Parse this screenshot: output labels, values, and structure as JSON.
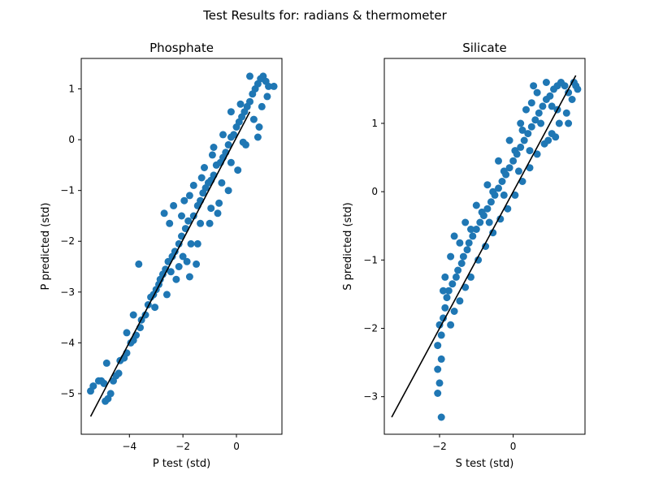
{
  "suptitle": "Test Results for: radians & thermometer",
  "chart_data": [
    {
      "type": "scatter",
      "title": "Phosphate",
      "xlabel": "P test (std)",
      "ylabel": "P predicted (std)",
      "xlim": [
        -5.8,
        1.7
      ],
      "ylim": [
        -5.8,
        1.6
      ],
      "xticks": [
        -4,
        -2,
        0
      ],
      "yticks": [
        -5,
        -4,
        -3,
        -2,
        -1,
        0,
        1
      ],
      "grid": false,
      "marker_color": "#1f77b4",
      "line_color": "#000000",
      "reference_line": {
        "x": [
          -5.45,
          0.5
        ],
        "y": [
          -5.45,
          0.55
        ]
      },
      "points": [
        [
          -5.45,
          -4.95
        ],
        [
          -5.35,
          -4.85
        ],
        [
          -5.15,
          -4.75
        ],
        [
          -5.05,
          -4.75
        ],
        [
          -4.95,
          -4.8
        ],
        [
          -4.9,
          -5.15
        ],
        [
          -4.85,
          -4.4
        ],
        [
          -4.8,
          -5.1
        ],
        [
          -4.7,
          -5.0
        ],
        [
          -4.6,
          -4.75
        ],
        [
          -4.5,
          -4.65
        ],
        [
          -4.4,
          -4.6
        ],
        [
          -4.35,
          -4.35
        ],
        [
          -4.2,
          -4.3
        ],
        [
          -4.1,
          -4.2
        ],
        [
          -3.95,
          -4.0
        ],
        [
          -3.85,
          -3.95
        ],
        [
          -3.75,
          -3.85
        ],
        [
          -3.6,
          -3.7
        ],
        [
          -3.65,
          -2.45
        ],
        [
          -3.55,
          -3.55
        ],
        [
          -3.4,
          -3.45
        ],
        [
          -3.3,
          -3.25
        ],
        [
          -3.2,
          -3.1
        ],
        [
          -3.1,
          -3.05
        ],
        [
          -3.0,
          -2.95
        ],
        [
          -2.9,
          -2.85
        ],
        [
          -2.75,
          -2.65
        ],
        [
          -2.65,
          -2.55
        ],
        [
          -2.55,
          -2.4
        ],
        [
          -2.5,
          -1.65
        ],
        [
          -2.4,
          -2.3
        ],
        [
          -2.3,
          -2.2
        ],
        [
          -2.15,
          -2.05
        ],
        [
          -2.05,
          -1.9
        ],
        [
          -2.0,
          -2.3
        ],
        [
          -1.9,
          -1.75
        ],
        [
          -1.8,
          -1.6
        ],
        [
          -1.75,
          -2.7
        ],
        [
          -1.6,
          -1.5
        ],
        [
          -1.5,
          -2.45
        ],
        [
          -1.45,
          -1.3
        ],
        [
          -1.35,
          -1.2
        ],
        [
          -1.25,
          -1.05
        ],
        [
          -1.15,
          -0.95
        ],
        [
          -1.05,
          -0.85
        ],
        [
          -0.95,
          -0.8
        ],
        [
          -0.85,
          -0.7
        ],
        [
          -0.75,
          -0.5
        ],
        [
          -0.7,
          -1.45
        ],
        [
          -0.6,
          -0.45
        ],
        [
          -0.5,
          -0.35
        ],
        [
          -0.4,
          -0.25
        ],
        [
          -0.3,
          -0.1
        ],
        [
          -0.2,
          0.05
        ],
        [
          -0.1,
          0.1
        ],
        [
          0.0,
          0.25
        ],
        [
          0.1,
          0.35
        ],
        [
          0.2,
          0.45
        ],
        [
          0.3,
          0.55
        ],
        [
          0.4,
          0.65
        ],
        [
          0.5,
          0.75
        ],
        [
          0.6,
          0.9
        ],
        [
          0.7,
          1.0
        ],
        [
          0.8,
          1.1
        ],
        [
          0.9,
          1.2
        ],
        [
          1.0,
          1.25
        ],
        [
          1.1,
          1.15
        ],
        [
          1.2,
          1.05
        ],
        [
          1.4,
          1.05
        ],
        [
          -2.7,
          -1.45
        ],
        [
          -2.35,
          -1.3
        ],
        [
          -1.95,
          -1.2
        ],
        [
          -1.6,
          -0.9
        ],
        [
          -1.2,
          -0.55
        ],
        [
          -0.9,
          -0.3
        ],
        [
          -0.5,
          0.1
        ],
        [
          -0.2,
          0.55
        ],
        [
          0.15,
          0.7
        ],
        [
          0.5,
          1.25
        ],
        [
          -2.6,
          -3.05
        ],
        [
          -2.25,
          -2.75
        ],
        [
          -1.85,
          -2.4
        ],
        [
          -1.45,
          -2.05
        ],
        [
          -1.0,
          -1.65
        ],
        [
          -0.65,
          -1.25
        ],
        [
          -0.3,
          -1.0
        ],
        [
          0.05,
          -0.6
        ],
        [
          0.35,
          -0.1
        ],
        [
          0.8,
          0.05
        ],
        [
          -3.05,
          -3.3
        ],
        [
          -2.85,
          -2.75
        ],
        [
          -2.45,
          -2.6
        ],
        [
          -2.15,
          -2.5
        ],
        [
          -1.7,
          -2.05
        ],
        [
          -1.35,
          -1.65
        ],
        [
          -0.95,
          -1.35
        ],
        [
          -0.55,
          -0.85
        ],
        [
          -0.2,
          -0.45
        ],
        [
          0.25,
          -0.05
        ],
        [
          0.65,
          0.4
        ],
        [
          0.95,
          0.65
        ],
        [
          1.15,
          0.85
        ],
        [
          0.85,
          0.25
        ],
        [
          -0.85,
          -0.15
        ],
        [
          -1.3,
          -0.75
        ],
        [
          -1.75,
          -1.1
        ],
        [
          -2.05,
          -1.5
        ],
        [
          -3.85,
          -3.45
        ],
        [
          -4.1,
          -3.8
        ]
      ]
    },
    {
      "type": "scatter",
      "title": "Silicate",
      "xlabel": "S test (std)",
      "ylabel": "S predicted (std)",
      "xlim": [
        -3.5,
        1.95
      ],
      "ylim": [
        -3.55,
        1.95
      ],
      "xticks": [
        -2,
        0
      ],
      "yticks": [
        -3,
        -2,
        -1,
        0,
        1
      ],
      "grid": false,
      "marker_color": "#1f77b4",
      "line_color": "#000000",
      "reference_line": {
        "x": [
          -3.3,
          1.7
        ],
        "y": [
          -3.3,
          1.7
        ]
      },
      "points": [
        [
          -1.95,
          -3.3
        ],
        [
          -2.05,
          -2.95
        ],
        [
          -2.0,
          -2.8
        ],
        [
          -2.05,
          -2.6
        ],
        [
          -1.95,
          -2.45
        ],
        [
          -2.05,
          -2.25
        ],
        [
          -1.95,
          -2.1
        ],
        [
          -2.0,
          -1.95
        ],
        [
          -1.9,
          -1.85
        ],
        [
          -1.85,
          -1.7
        ],
        [
          -1.8,
          -1.55
        ],
        [
          -1.75,
          -1.45
        ],
        [
          -1.7,
          -1.95
        ],
        [
          -1.65,
          -1.35
        ],
        [
          -1.6,
          -1.75
        ],
        [
          -1.55,
          -1.25
        ],
        [
          -1.5,
          -1.15
        ],
        [
          -1.45,
          -1.6
        ],
        [
          -1.4,
          -1.05
        ],
        [
          -1.35,
          -0.95
        ],
        [
          -1.3,
          -1.4
        ],
        [
          -1.25,
          -0.85
        ],
        [
          -1.2,
          -0.75
        ],
        [
          -1.15,
          -1.25
        ],
        [
          -1.1,
          -0.65
        ],
        [
          -1.0,
          -0.55
        ],
        [
          -0.95,
          -1.0
        ],
        [
          -0.9,
          -0.45
        ],
        [
          -0.8,
          -0.35
        ],
        [
          -0.75,
          -0.8
        ],
        [
          -0.7,
          -0.25
        ],
        [
          -0.6,
          -0.15
        ],
        [
          -0.55,
          -0.6
        ],
        [
          -0.5,
          -0.05
        ],
        [
          -0.4,
          0.05
        ],
        [
          -0.35,
          -0.4
        ],
        [
          -0.3,
          0.15
        ],
        [
          -0.2,
          0.25
        ],
        [
          -0.15,
          -0.25
        ],
        [
          -0.1,
          0.35
        ],
        [
          0.0,
          0.45
        ],
        [
          0.05,
          -0.05
        ],
        [
          0.1,
          0.55
        ],
        [
          0.2,
          0.65
        ],
        [
          0.25,
          0.15
        ],
        [
          0.3,
          0.75
        ],
        [
          0.4,
          0.85
        ],
        [
          0.45,
          0.35
        ],
        [
          0.5,
          0.95
        ],
        [
          0.6,
          1.05
        ],
        [
          0.65,
          0.55
        ],
        [
          0.7,
          1.15
        ],
        [
          0.8,
          1.25
        ],
        [
          0.85,
          0.7
        ],
        [
          0.9,
          1.35
        ],
        [
          1.0,
          1.4
        ],
        [
          1.05,
          0.85
        ],
        [
          1.1,
          1.5
        ],
        [
          1.2,
          1.55
        ],
        [
          1.25,
          1.0
        ],
        [
          1.3,
          1.6
        ],
        [
          1.4,
          1.55
        ],
        [
          1.45,
          1.15
        ],
        [
          1.5,
          1.45
        ],
        [
          1.6,
          1.35
        ],
        [
          1.65,
          1.6
        ],
        [
          1.7,
          1.55
        ],
        [
          1.75,
          1.5
        ],
        [
          1.15,
          0.8
        ],
        [
          0.95,
          0.75
        ],
        [
          -1.6,
          -0.65
        ],
        [
          -1.3,
          -0.45
        ],
        [
          -1.0,
          -0.2
        ],
        [
          -0.7,
          0.1
        ],
        [
          -0.4,
          0.45
        ],
        [
          -0.1,
          0.75
        ],
        [
          0.2,
          1.0
        ],
        [
          0.5,
          1.3
        ],
        [
          0.35,
          1.2
        ],
        [
          0.65,
          1.45
        ],
        [
          -1.85,
          -1.25
        ],
        [
          -1.9,
          -1.45
        ],
        [
          -1.7,
          -0.95
        ],
        [
          -1.45,
          -0.75
        ],
        [
          -1.15,
          -0.55
        ],
        [
          -0.85,
          -0.3
        ],
        [
          -0.55,
          0.0
        ],
        [
          -0.25,
          0.3
        ],
        [
          0.05,
          0.6
        ],
        [
          0.25,
          0.9
        ],
        [
          0.55,
          1.55
        ],
        [
          0.9,
          1.6
        ],
        [
          1.2,
          1.2
        ],
        [
          1.5,
          1.0
        ],
        [
          1.05,
          1.25
        ],
        [
          0.75,
          1.0
        ],
        [
          0.45,
          0.6
        ],
        [
          0.15,
          0.3
        ],
        [
          -0.25,
          -0.05
        ],
        [
          -0.65,
          -0.45
        ]
      ]
    }
  ]
}
